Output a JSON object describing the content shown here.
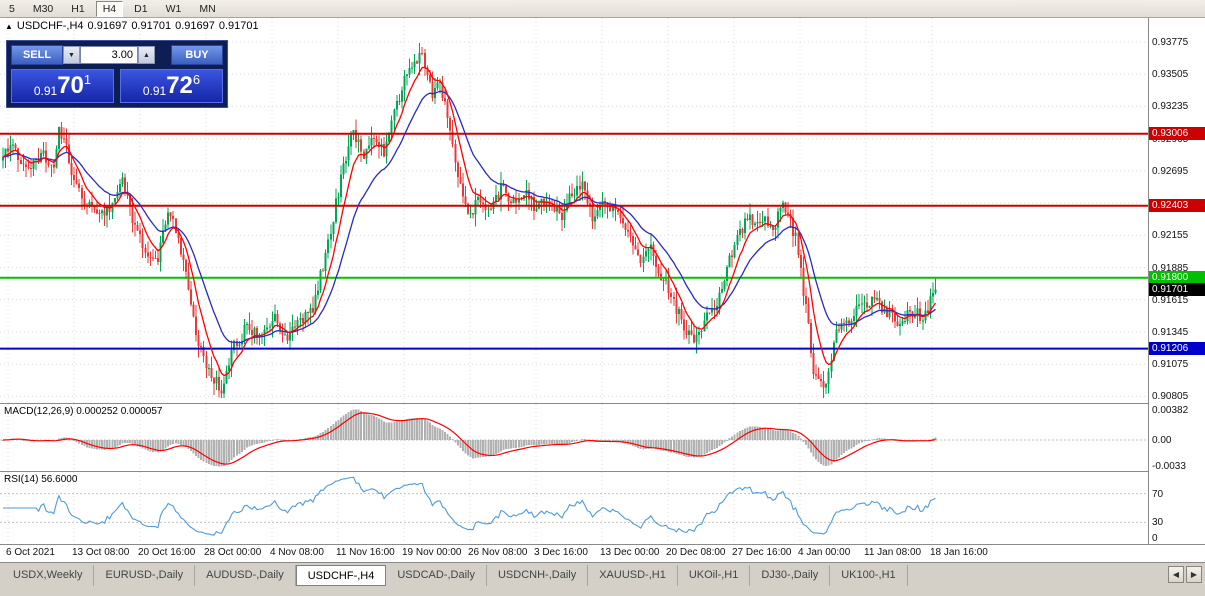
{
  "toolbar": {
    "timeframes": [
      {
        "label": "5",
        "active": false
      },
      {
        "label": "M30",
        "active": false
      },
      {
        "label": "H1",
        "active": false
      },
      {
        "label": "H4",
        "active": true
      },
      {
        "label": "D1",
        "active": false
      },
      {
        "label": "W1",
        "active": false
      },
      {
        "label": "MN",
        "active": false
      }
    ]
  },
  "info_line": {
    "collapse_icon": "▲",
    "symbol": "USDCHF-,H4"
  },
  "one_click": {
    "sell_label": "SELL",
    "buy_label": "BUY",
    "volume": "3.00",
    "dropdown_icon": "▼",
    "spin_up_icon": "▲",
    "sell_price": {
      "prefix": "0.91",
      "big": "70",
      "sup": "1"
    },
    "buy_price": {
      "prefix": "0.91",
      "big": "72",
      "sup": "6"
    }
  },
  "indicators": {
    "macd_label": "MACD(12,26,9) 0.000252 0.000057",
    "rsi_label": "RSI(14) 56.6000"
  },
  "tabs": {
    "scroll_left_icon": "◀",
    "scroll_right_icon": "▶",
    "items": [
      {
        "label": "USDX,Weekly",
        "active": false
      },
      {
        "label": "EURUSD-,Daily",
        "active": false
      },
      {
        "label": "AUDUSD-,Daily",
        "active": false
      },
      {
        "label": "USDCHF-,H4",
        "active": true
      },
      {
        "label": "USDCAD-,Daily",
        "active": false
      },
      {
        "label": "USDCNH-,Daily",
        "active": false
      },
      {
        "label": "XAUUSD-,H1",
        "active": false
      },
      {
        "label": "UKOil-,H1",
        "active": false
      },
      {
        "label": "DJ30-,Daily",
        "active": false
      },
      {
        "label": "UK100-,H1",
        "active": false
      }
    ]
  },
  "chart_data": {
    "type": "candlestick",
    "symbol": "USDCHF-",
    "timeframe": "H4",
    "current_ohlc": {
      "open": "0.91697",
      "high": "0.91701",
      "low": "0.91697",
      "close": "0.91701"
    },
    "last_price": 0.91701,
    "num_candles": 368,
    "y_range": [
      0.9075,
      0.93976
    ],
    "up_color": "#00a651",
    "down_color": "#e83a3a",
    "grid_color": "#dcdcdc",
    "y_axis": {
      "labels": [
        {
          "v": 0.93775,
          "label": "0.93775"
        },
        {
          "v": 0.93505,
          "label": "0.93505"
        },
        {
          "v": 0.93235,
          "label": "0.93235"
        },
        {
          "v": 0.92965,
          "label": "0.92965"
        },
        {
          "v": 0.92695,
          "label": "0.92695"
        },
        {
          "v": 0.92425,
          "label": "0.92425"
        },
        {
          "v": 0.92155,
          "label": "0.92155"
        },
        {
          "v": 0.91885,
          "label": "0.91885"
        },
        {
          "v": 0.91615,
          "label": "0.91615"
        },
        {
          "v": 0.91345,
          "label": "0.91345"
        },
        {
          "v": 0.91075,
          "label": "0.91075"
        },
        {
          "v": 0.90805,
          "label": "0.90805"
        }
      ]
    },
    "x_axis": {
      "labels": [
        "6 Oct 2021",
        "13 Oct 08:00",
        "20 Oct 16:00",
        "28 Oct 00:00",
        "4 Nov 08:00",
        "11 Nov 16:00",
        "19 Nov 00:00",
        "26 Nov 08:00",
        "3 Dec 16:00",
        "13 Dec 00:00",
        "20 Dec 08:00",
        "27 Dec 16:00",
        "4 Jan 00:00",
        "11 Jan 08:00",
        "18 Jan 16:00"
      ]
    },
    "h_lines": [
      {
        "price": 0.93006,
        "label": "0.93006",
        "color": "#cc0000"
      },
      {
        "price": 0.92403,
        "label": "0.92403",
        "color": "#cc0000"
      },
      {
        "price": 0.918,
        "label": "0.91800",
        "color": "#00c000"
      },
      {
        "price": 0.91206,
        "label": "0.91206",
        "color": "#0000cc"
      }
    ],
    "current_price": {
      "price": 0.91701,
      "label": "0.91701",
      "color": "#000000"
    },
    "moving_averages": [
      {
        "type": "EMA",
        "period": 8,
        "color": "#ff0000"
      },
      {
        "type": "EMA",
        "period": 21,
        "color": "#2a2ac0"
      }
    ],
    "macd": {
      "fast": 12,
      "slow": 26,
      "signal_period": 9,
      "value": 0.000252,
      "signal_value": 5.7e-05,
      "histogram_color": "#b0b0b0",
      "signal_color": "#ff0000",
      "scale": [
        {
          "v": 0.00382,
          "label": "0.00382"
        },
        {
          "v": 0,
          "label": "0.00"
        },
        {
          "v": -0.0033,
          "label": "-0.0033"
        }
      ]
    },
    "rsi": {
      "period": 14,
      "value": 56.6,
      "line_color": "#4f9bd8",
      "levels": [
        70,
        30
      ],
      "scale": [
        {
          "v": 70,
          "label": "70"
        },
        {
          "v": 30,
          "label": "30"
        },
        {
          "v": 0,
          "label": "0"
        }
      ]
    },
    "price_path": [
      [
        0.0,
        0.9278
      ],
      [
        0.008,
        0.9294
      ],
      [
        0.018,
        0.9282
      ],
      [
        0.03,
        0.927
      ],
      [
        0.042,
        0.9285
      ],
      [
        0.055,
        0.9272
      ],
      [
        0.06,
        0.9308
      ],
      [
        0.068,
        0.9288
      ],
      [
        0.078,
        0.9255
      ],
      [
        0.092,
        0.924
      ],
      [
        0.105,
        0.9235
      ],
      [
        0.118,
        0.9242
      ],
      [
        0.128,
        0.9263
      ],
      [
        0.14,
        0.9225
      ],
      [
        0.152,
        0.9205
      ],
      [
        0.165,
        0.9192
      ],
      [
        0.178,
        0.9238
      ],
      [
        0.188,
        0.9212
      ],
      [
        0.198,
        0.918
      ],
      [
        0.208,
        0.913
      ],
      [
        0.222,
        0.9096
      ],
      [
        0.235,
        0.9088
      ],
      [
        0.248,
        0.9122
      ],
      [
        0.262,
        0.914
      ],
      [
        0.275,
        0.9128
      ],
      [
        0.29,
        0.9148
      ],
      [
        0.305,
        0.913
      ],
      [
        0.318,
        0.9142
      ],
      [
        0.332,
        0.9155
      ],
      [
        0.348,
        0.9205
      ],
      [
        0.362,
        0.9262
      ],
      [
        0.375,
        0.9308
      ],
      [
        0.386,
        0.928
      ],
      [
        0.398,
        0.9296
      ],
      [
        0.41,
        0.9286
      ],
      [
        0.424,
        0.933
      ],
      [
        0.438,
        0.936
      ],
      [
        0.45,
        0.9368
      ],
      [
        0.46,
        0.9335
      ],
      [
        0.468,
        0.9348
      ],
      [
        0.48,
        0.9305
      ],
      [
        0.49,
        0.9255
      ],
      [
        0.5,
        0.9232
      ],
      [
        0.512,
        0.9248
      ],
      [
        0.522,
        0.9232
      ],
      [
        0.535,
        0.9256
      ],
      [
        0.548,
        0.9242
      ],
      [
        0.56,
        0.925
      ],
      [
        0.572,
        0.9238
      ],
      [
        0.585,
        0.9246
      ],
      [
        0.598,
        0.923
      ],
      [
        0.61,
        0.925
      ],
      [
        0.62,
        0.926
      ],
      [
        0.632,
        0.9232
      ],
      [
        0.645,
        0.9246
      ],
      [
        0.658,
        0.9232
      ],
      [
        0.67,
        0.922
      ],
      [
        0.682,
        0.9194
      ],
      [
        0.694,
        0.9204
      ],
      [
        0.706,
        0.9182
      ],
      [
        0.718,
        0.9162
      ],
      [
        0.73,
        0.914
      ],
      [
        0.742,
        0.9128
      ],
      [
        0.755,
        0.9146
      ],
      [
        0.768,
        0.9162
      ],
      [
        0.782,
        0.9202
      ],
      [
        0.796,
        0.9226
      ],
      [
        0.81,
        0.9232
      ],
      [
        0.824,
        0.9222
      ],
      [
        0.838,
        0.924
      ],
      [
        0.85,
        0.9215
      ],
      [
        0.86,
        0.916
      ],
      [
        0.87,
        0.91
      ],
      [
        0.882,
        0.909
      ],
      [
        0.893,
        0.9132
      ],
      [
        0.906,
        0.9146
      ],
      [
        0.92,
        0.9154
      ],
      [
        0.934,
        0.916
      ],
      [
        0.948,
        0.9152
      ],
      [
        0.962,
        0.9143
      ],
      [
        0.976,
        0.9152
      ],
      [
        0.988,
        0.9146
      ],
      [
        1.0,
        0.917
      ]
    ]
  }
}
